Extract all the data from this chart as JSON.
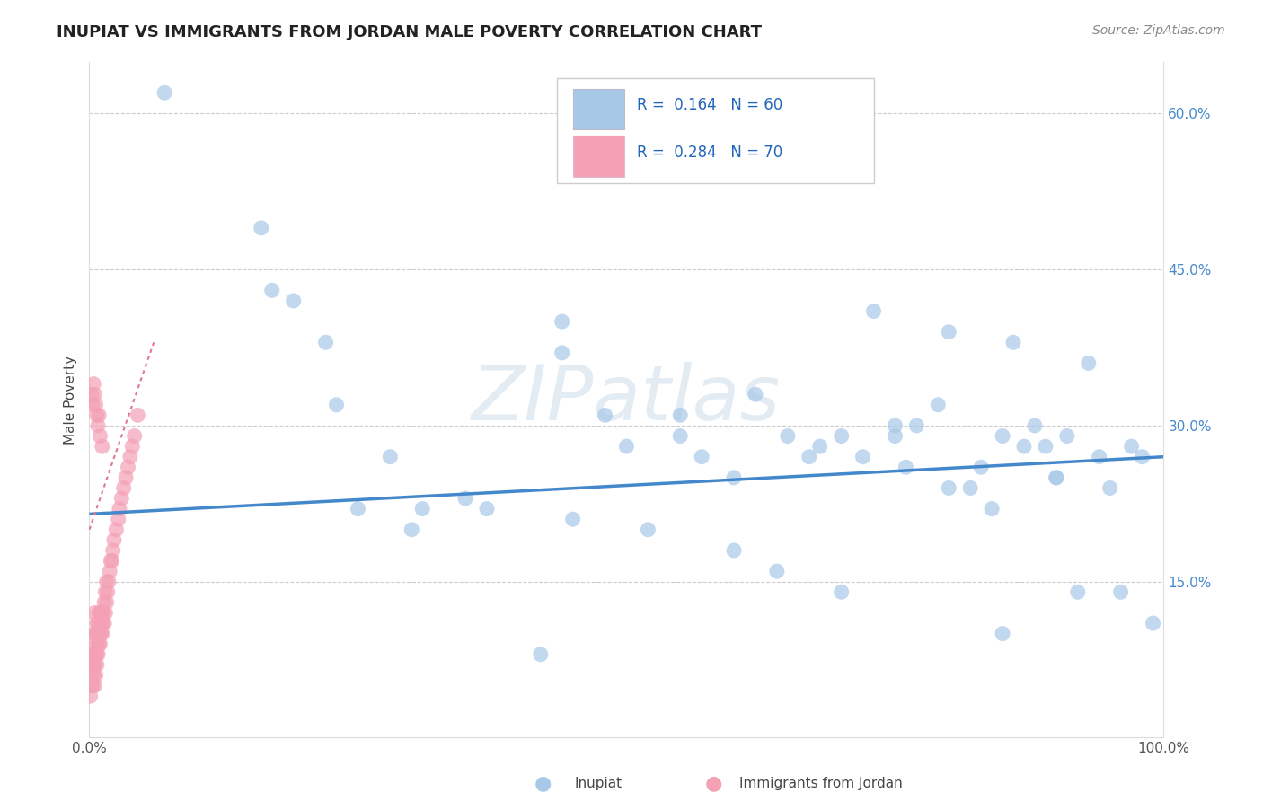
{
  "title": "INUPIAT VS IMMIGRANTS FROM JORDAN MALE POVERTY CORRELATION CHART",
  "source": "Source: ZipAtlas.com",
  "ylabel": "Male Poverty",
  "xlim": [
    0.0,
    1.0
  ],
  "ylim": [
    0.0,
    0.65
  ],
  "color_inupiat": "#a8c8e8",
  "color_jordan": "#f4a0b5",
  "line_color_inupiat": "#4488cc",
  "line_color_jordan": "#e07890",
  "background_color": "#ffffff",
  "grid_color": "#cccccc",
  "inupiat_x": [
    0.07,
    0.16,
    0.19,
    0.22,
    0.25,
    0.28,
    0.31,
    0.37,
    0.44,
    0.44,
    0.48,
    0.55,
    0.6,
    0.62,
    0.64,
    0.67,
    0.7,
    0.72,
    0.73,
    0.75,
    0.76,
    0.77,
    0.79,
    0.8,
    0.82,
    0.83,
    0.84,
    0.85,
    0.86,
    0.87,
    0.88,
    0.89,
    0.9,
    0.91,
    0.92,
    0.93,
    0.94,
    0.95,
    0.96,
    0.97,
    0.98,
    0.99,
    0.3,
    0.35,
    0.45,
    0.5,
    0.55,
    0.6,
    0.65,
    0.7,
    0.75,
    0.8,
    0.85,
    0.9,
    0.42,
    0.23,
    0.17,
    0.52,
    0.68,
    0.57
  ],
  "inupiat_y": [
    0.62,
    0.49,
    0.42,
    0.38,
    0.22,
    0.27,
    0.22,
    0.22,
    0.4,
    0.37,
    0.31,
    0.31,
    0.18,
    0.33,
    0.16,
    0.27,
    0.29,
    0.27,
    0.41,
    0.29,
    0.26,
    0.3,
    0.32,
    0.39,
    0.24,
    0.26,
    0.22,
    0.29,
    0.38,
    0.28,
    0.3,
    0.28,
    0.25,
    0.29,
    0.14,
    0.36,
    0.27,
    0.24,
    0.14,
    0.28,
    0.27,
    0.11,
    0.2,
    0.23,
    0.21,
    0.28,
    0.29,
    0.25,
    0.29,
    0.14,
    0.3,
    0.24,
    0.1,
    0.25,
    0.08,
    0.32,
    0.43,
    0.2,
    0.28,
    0.27
  ],
  "jordan_x": [
    0.001,
    0.002,
    0.002,
    0.003,
    0.003,
    0.003,
    0.004,
    0.004,
    0.004,
    0.004,
    0.005,
    0.005,
    0.005,
    0.005,
    0.006,
    0.006,
    0.006,
    0.007,
    0.007,
    0.007,
    0.007,
    0.008,
    0.008,
    0.008,
    0.009,
    0.009,
    0.009,
    0.01,
    0.01,
    0.01,
    0.011,
    0.011,
    0.012,
    0.012,
    0.013,
    0.013,
    0.014,
    0.014,
    0.015,
    0.015,
    0.016,
    0.016,
    0.017,
    0.018,
    0.019,
    0.02,
    0.021,
    0.022,
    0.023,
    0.025,
    0.027,
    0.028,
    0.03,
    0.032,
    0.034,
    0.036,
    0.038,
    0.04,
    0.042,
    0.045,
    0.002,
    0.003,
    0.004,
    0.005,
    0.006,
    0.007,
    0.008,
    0.009,
    0.01,
    0.012
  ],
  "jordan_y": [
    0.04,
    0.05,
    0.06,
    0.05,
    0.07,
    0.08,
    0.06,
    0.07,
    0.08,
    0.09,
    0.05,
    0.07,
    0.1,
    0.12,
    0.06,
    0.08,
    0.1,
    0.07,
    0.08,
    0.1,
    0.11,
    0.08,
    0.09,
    0.11,
    0.09,
    0.1,
    0.12,
    0.09,
    0.1,
    0.12,
    0.1,
    0.11,
    0.1,
    0.12,
    0.11,
    0.12,
    0.11,
    0.13,
    0.12,
    0.14,
    0.13,
    0.15,
    0.14,
    0.15,
    0.16,
    0.17,
    0.17,
    0.18,
    0.19,
    0.2,
    0.21,
    0.22,
    0.23,
    0.24,
    0.25,
    0.26,
    0.27,
    0.28,
    0.29,
    0.31,
    0.33,
    0.32,
    0.34,
    0.33,
    0.32,
    0.31,
    0.3,
    0.31,
    0.29,
    0.28
  ],
  "inupiat_trend_x": [
    0.0,
    1.0
  ],
  "inupiat_trend_y": [
    0.215,
    0.27
  ],
  "jordan_trend_x": [
    0.0,
    0.06
  ],
  "jordan_trend_y": [
    0.2,
    0.38
  ],
  "legend_text1": "R =  0.164   N = 60",
  "legend_text2": "R =  0.284   N = 70"
}
